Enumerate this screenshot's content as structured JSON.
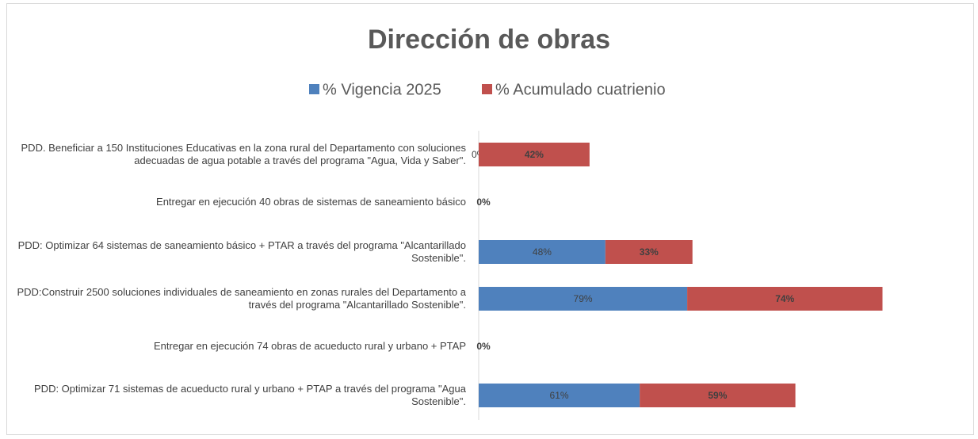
{
  "chart_data": {
    "type": "stacked-bar-horizontal",
    "title": "Dirección de obras",
    "categories": [
      "PDD. Beneficiar a 150 Instituciones Educativas en la zona rural del Departamento con soluciones adecuadas de agua potable a través del programa \"Agua, Vida y Saber\".",
      "Entregar en ejecución 40 obras de sistemas de saneamiento básico",
      "PDD: Optimizar 64 sistemas de saneamiento básico + PTAR a través del programa \"Alcantarillado Sostenible\".",
      "PDD:Construir 2500 soluciones individuales de saneamiento en zonas rurales del Departamento a través del programa \"Alcantarillado Sostenible\".",
      "Entregar en ejecución 74 obras de acueducto rural y urbano + PTAP",
      "PDD: Optimizar 71 sistemas de acueducto rural y urbano + PTAP  a través del programa \"Agua Sostenible\"."
    ],
    "series": [
      {
        "name": "% Vigencia 2025",
        "color": "#4f81bd",
        "values": [
          0,
          null,
          48,
          79,
          null,
          61
        ],
        "value_labels": [
          "0%",
          null,
          "48%",
          "79%",
          null,
          "61%"
        ]
      },
      {
        "name": "% Acumulado cuatrienio",
        "color": "#c0504d",
        "values": [
          42,
          0,
          33,
          74,
          0,
          59
        ],
        "value_labels": [
          "42%",
          "0%",
          "33%",
          "74%",
          "0%",
          "59%"
        ]
      }
    ]
  }
}
